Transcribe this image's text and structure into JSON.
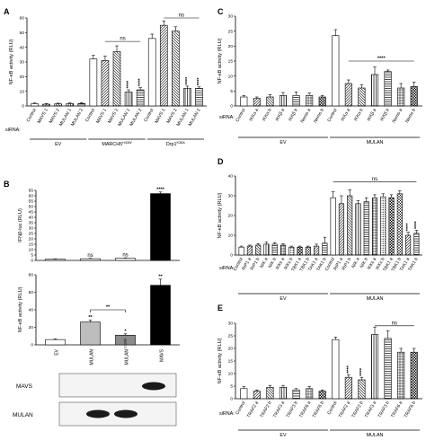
{
  "figure": {
    "panels": [
      "A",
      "B",
      "C",
      "D",
      "E"
    ],
    "blot_labels": [
      "MAVS",
      "MULAN"
    ]
  },
  "chart_data": [
    {
      "panel": "A",
      "type": "bar",
      "ylabel": "NF-κB activity (RLU)",
      "ylim": [
        0,
        60
      ],
      "yticks": [
        "0",
        "10",
        "20",
        "30",
        "40",
        "50",
        "60"
      ],
      "row_label": "siRNA:",
      "categories": [
        "Control",
        "MAVS 1",
        "MAVS 2",
        "MULAN 1",
        "MULAN 2",
        "Control",
        "MAVS 1",
        "MAVS 2",
        "MULAN 1",
        "MULAN 2",
        "Control",
        "MAVS 1",
        "MAVS 2",
        "MULAN 1",
        "MULAN 2"
      ],
      "values": [
        1.5,
        1.2,
        1.4,
        1.6,
        1.7,
        32,
        31,
        37,
        9.5,
        11,
        46,
        55,
        51,
        12,
        12
      ],
      "errors": [
        0.5,
        0.5,
        0.5,
        0.5,
        0.5,
        2.5,
        3,
        4,
        1.5,
        1.5,
        3,
        3,
        3,
        1.5,
        1
      ],
      "groups": [
        {
          "label": "EV",
          "sup": "",
          "count": 5
        },
        {
          "label": "MARCH5",
          "sup": "H43W",
          "count": 5
        },
        {
          "label": "Drp1",
          "sup": "K38A",
          "count": 5
        }
      ],
      "significance": [
        "",
        "",
        "",
        "",
        "",
        "",
        "",
        "",
        "****",
        "****",
        "",
        "",
        "",
        "****",
        "****"
      ],
      "ns_labels": [
        "ns",
        "ns"
      ]
    },
    {
      "panel": "B",
      "type": "bar",
      "ylabel": "IFNβ-luc (RLU)",
      "ylim": [
        0,
        65
      ],
      "yticks": [
        "0",
        "5",
        "10",
        "15",
        "20",
        "25",
        "30",
        "35",
        "40",
        "45",
        "50",
        "55",
        "60",
        "65"
      ],
      "categories": [
        "EV",
        "MULAN",
        "MULAN^C339A",
        "MAVS"
      ],
      "values": [
        1.2,
        1.6,
        2.0,
        62
      ],
      "errors": [
        0.3,
        0.4,
        0.4,
        1.5
      ],
      "significance": [
        "",
        "ns",
        "ns",
        "****"
      ]
    },
    {
      "panel": "B",
      "type": "bar",
      "ylabel": "NF-κB activity (RLU)",
      "ylim": [
        0,
        80
      ],
      "yticks": [
        "0",
        "20",
        "40",
        "60",
        "80"
      ],
      "categories": [
        "EV",
        "MULAN",
        "MULAN",
        "MAVS"
      ],
      "category_sup": [
        "",
        "",
        "C339A",
        ""
      ],
      "values": [
        6,
        26,
        11,
        68
      ],
      "errors": [
        0.8,
        2,
        1.5,
        7
      ],
      "significance": [
        "",
        "**",
        "*",
        "**"
      ],
      "bracket_label": "**"
    },
    {
      "panel": "C",
      "type": "bar",
      "ylabel": "NF-κB activity (RLU)",
      "ylim": [
        0,
        30
      ],
      "yticks": [
        "0",
        "5",
        "10",
        "15",
        "20",
        "25",
        "30"
      ],
      "row_label": "siRNA:",
      "categories": [
        "Control",
        "IKKα a",
        "IKKα b",
        "IKKβ a",
        "IKKβ b",
        "Nemo a",
        "Nemo b",
        "Control",
        "IKKα a",
        "IKKα b",
        "IKKβ a",
        "IKKβ b",
        "Nemo a",
        "Nemo b"
      ],
      "values": [
        3,
        2.5,
        3,
        3.5,
        3.5,
        3.5,
        3,
        23.5,
        7.5,
        6,
        10.5,
        11.5,
        6,
        6.5
      ],
      "errors": [
        0.5,
        0.5,
        0.8,
        1,
        1.2,
        0.8,
        0.5,
        2,
        1.2,
        1,
        2.5,
        0.5,
        1.5,
        1.5
      ],
      "groups": [
        {
          "label": "EV",
          "sup": "",
          "count": 7
        },
        {
          "label": "MULAN",
          "sup": "",
          "count": 7
        }
      ],
      "bracket_label": "****"
    },
    {
      "panel": "D",
      "type": "bar",
      "ylabel": "NF-κB activity (RLU)",
      "ylim": [
        0,
        40
      ],
      "yticks": [
        "0",
        "10",
        "20",
        "30",
        "40"
      ],
      "row_label": "siRNA:",
      "categories": [
        "Control",
        "RIP1 a",
        "RIP1 b",
        "NIK a",
        "NIK b",
        "IKKε a",
        "IKKε b",
        "TBK1 a",
        "TBK1 b",
        "TAK1 a",
        "TAK1 b",
        "Control",
        "RIP1 a",
        "RIP1 b",
        "NIK a",
        "NIK b",
        "IKKε a",
        "IKKε b",
        "TBK1 a",
        "TBK1 b",
        "TAK1 a",
        "TAK1 b"
      ],
      "values": [
        4,
        4.5,
        5,
        5.5,
        5.5,
        5,
        4,
        4,
        4,
        4.5,
        6,
        29,
        26,
        30,
        26,
        27,
        29,
        29.5,
        29,
        31,
        10,
        11
      ],
      "errors": [
        0.5,
        0.5,
        0.8,
        1,
        0.8,
        0.8,
        0.5,
        0.5,
        0.5,
        1,
        3,
        3,
        4,
        3,
        1.5,
        2,
        1.5,
        1.5,
        1.5,
        1.5,
        1.5,
        1.5
      ],
      "groups": [
        {
          "label": "EV",
          "sup": "",
          "count": 11
        },
        {
          "label": "MULAN",
          "sup": "",
          "count": 11
        }
      ],
      "significance": [
        "",
        "",
        "",
        "",
        "",
        "",
        "",
        "",
        "",
        "",
        "",
        "",
        "",
        "",
        "",
        "",
        "",
        "",
        "",
        "",
        "****",
        "****"
      ],
      "ns_labels": [
        "ns"
      ]
    },
    {
      "panel": "E",
      "type": "bar",
      "ylabel": "NF-κB activity (RLU)",
      "ylim": [
        0,
        30
      ],
      "yticks": [
        "0",
        "5",
        "10",
        "15",
        "20",
        "25",
        "30"
      ],
      "row_label": "siRNA:",
      "categories": [
        "Control",
        "TRAF2 a",
        "TRAF2 b",
        "TRAF3 a",
        "TRAF3 b",
        "TRAF6 a",
        "TRAF6 b",
        "Control",
        "TRAF2 a",
        "TRAF2 b",
        "TRAF3 a",
        "TRAF3 b",
        "TRAF6 a",
        "TRAF6 b"
      ],
      "values": [
        4,
        3,
        4.5,
        4.5,
        3.5,
        4,
        3,
        23.5,
        8.5,
        7.5,
        25.5,
        24,
        18.5,
        18.5
      ],
      "errors": [
        0.8,
        0.5,
        0.8,
        0.8,
        0.5,
        0.8,
        0.5,
        1,
        1,
        1,
        3,
        3,
        1.5,
        1.5
      ],
      "groups": [
        {
          "label": "EV",
          "sup": "",
          "count": 7
        },
        {
          "label": "MULAN",
          "sup": "",
          "count": 7
        }
      ],
      "significance": [
        "",
        "",
        "",
        "",
        "",
        "",
        "",
        "",
        "****",
        "****",
        "",
        "",
        "",
        ""
      ],
      "ns_labels": [
        "ns"
      ]
    }
  ]
}
